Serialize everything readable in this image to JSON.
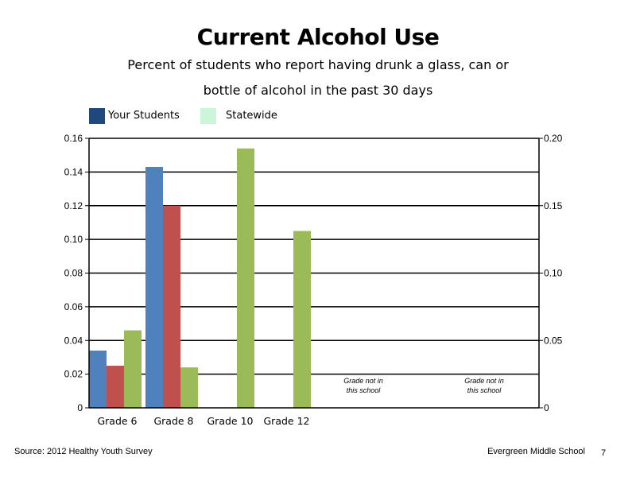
{
  "header": {
    "title": "Current Alcohol Use",
    "subtitle_line1": "Percent of students who report having drunk a glass, can or",
    "subtitle_line2": "bottle of alcohol in the past 30 days"
  },
  "legend": {
    "items": [
      {
        "label": "Your Students",
        "color": "#1f497d"
      },
      {
        "label": "Statewide",
        "color": "#ccf5d9"
      }
    ]
  },
  "footer": {
    "source": "Source: 2012 Healthy Youth Survey",
    "school": "Evergreen Middle School",
    "page": "7"
  },
  "chart_data": {
    "type": "bar",
    "categories": [
      "Grade 6",
      "Grade 8",
      "Grade 10",
      "Grade 12"
    ],
    "series": [
      {
        "color": "#4f81bd",
        "values": [
          0.034,
          0.143,
          null,
          null
        ]
      },
      {
        "color": "#c0504d",
        "values": [
          0.025,
          0.12,
          null,
          null
        ]
      },
      {
        "color": "#9bbb59",
        "values": [
          0.046,
          0.024,
          0.154,
          0.105
        ]
      }
    ],
    "ylim": [
      0,
      0.16
    ],
    "yticks": [
      "0",
      "0.02",
      "0.04",
      "0.06",
      "0.08",
      "0.10",
      "0.12",
      "0.14",
      "0.16"
    ],
    "y2lim": [
      0,
      0.2
    ],
    "y2ticks": [
      "0",
      "0.05",
      "0.10",
      "0.15",
      "0.20"
    ],
    "annotations": [
      {
        "line1": "Grade not in",
        "line2": "this school"
      },
      {
        "line1": "Grade not in",
        "line2": "this school"
      }
    ],
    "grid": true
  }
}
